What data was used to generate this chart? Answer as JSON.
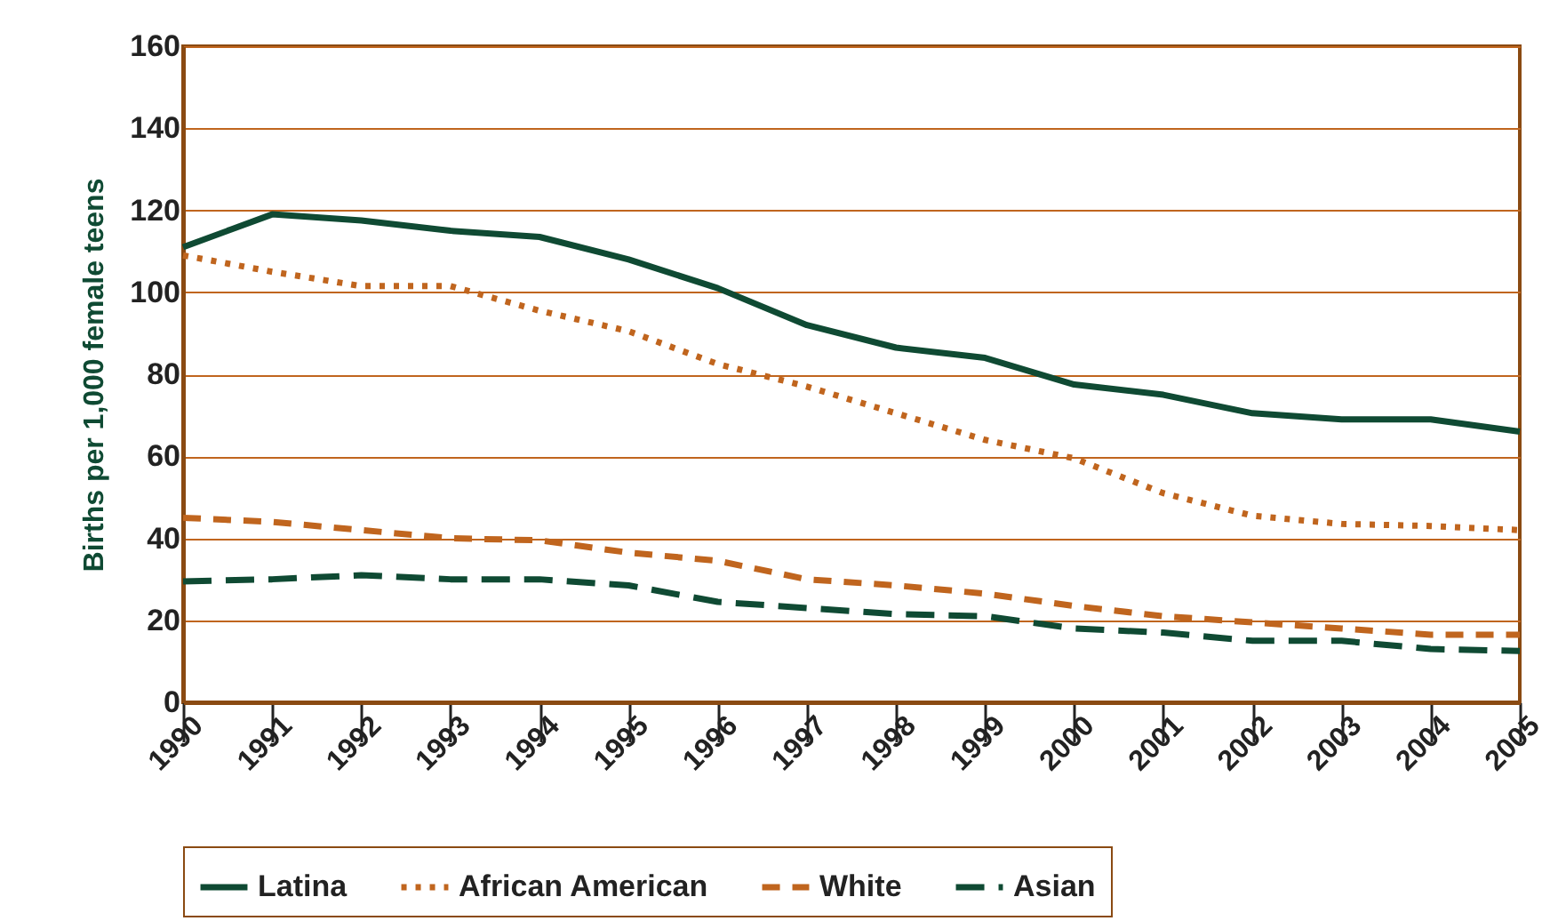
{
  "chart_data": {
    "type": "line",
    "ylabel": "Births per 1,000 female teens",
    "x": [
      1990,
      1991,
      1992,
      1993,
      1994,
      1995,
      1996,
      1997,
      1998,
      1999,
      2000,
      2001,
      2002,
      2003,
      2004,
      2005
    ],
    "xlim": [
      1990,
      2005
    ],
    "xticks": [
      1990,
      1991,
      1992,
      1993,
      1994,
      1995,
      1996,
      1997,
      1998,
      1999,
      2000,
      2001,
      2002,
      2003,
      2004,
      2005
    ],
    "ylim": [
      0,
      160
    ],
    "yticks": [
      0,
      20,
      40,
      60,
      80,
      100,
      120,
      140,
      160
    ],
    "grid": "y",
    "legend": "bottom",
    "marker": "none",
    "series": [
      {
        "name": "Latina",
        "color": "#0f4a33",
        "line_style": "solid",
        "values": [
          111,
          119,
          117.5,
          115,
          113.5,
          108,
          101,
          92,
          86.5,
          84,
          77.5,
          75,
          70.5,
          69,
          69,
          66
        ]
      },
      {
        "name": "African American",
        "color": "#c0651e",
        "line_style": "dotted",
        "values": [
          109,
          105,
          101.5,
          101.5,
          95.5,
          90.5,
          82.5,
          77,
          70.5,
          64,
          59.5,
          51,
          45.5,
          43.5,
          43,
          42
        ]
      },
      {
        "name": "White",
        "color": "#c0651e",
        "line_style": "dashed",
        "values": [
          45,
          44,
          42,
          40,
          39.5,
          36.5,
          34.5,
          30,
          28.5,
          26.5,
          23.5,
          21,
          19.5,
          18,
          16.5,
          16.5
        ]
      },
      {
        "name": "Asian",
        "color": "#0f4a33",
        "line_style": "longdash",
        "values": [
          29.5,
          30,
          31,
          30,
          30,
          28.5,
          24.5,
          23,
          21.5,
          21,
          18,
          17,
          15,
          15,
          13,
          12.5
        ]
      }
    ]
  }
}
